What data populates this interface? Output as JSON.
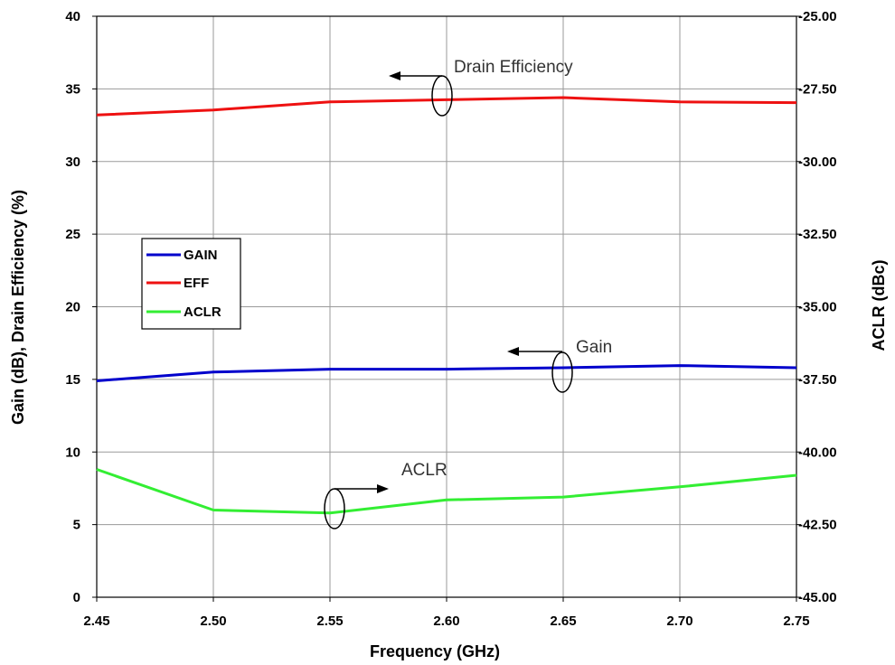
{
  "chart_data": {
    "type": "line",
    "title": "",
    "xlabel": "Frequency (GHz)",
    "ylabel_left": "Gain (dB), Drain Efficiency (%)",
    "ylabel_right": "ACLR (dBc)",
    "x": [
      2.45,
      2.5,
      2.55,
      2.6,
      2.65,
      2.7,
      2.75
    ],
    "x_ticks": [
      "2.45",
      "2.50",
      "2.55",
      "2.60",
      "2.65",
      "2.70",
      "2.75"
    ],
    "xlim": [
      2.45,
      2.75
    ],
    "ylim_left": [
      0,
      40
    ],
    "ylim_right": [
      -45,
      -25
    ],
    "y_left_ticks": [
      "0",
      "5",
      "10",
      "15",
      "20",
      "25",
      "30",
      "35",
      "40"
    ],
    "y_right_ticks": [
      "-45.00",
      "-42.50",
      "-40.00",
      "-37.50",
      "-35.00",
      "-32.50",
      "-30.00",
      "-27.50",
      "-25.00"
    ],
    "grid": true,
    "legend_position": "left-middle",
    "series": [
      {
        "name": "GAIN",
        "axis": "left",
        "color": "#0000cc",
        "values": [
          14.9,
          15.5,
          15.7,
          15.7,
          15.8,
          15.95,
          15.8
        ]
      },
      {
        "name": "EFF",
        "axis": "left",
        "color": "#ee1111",
        "values": [
          33.2,
          33.55,
          34.1,
          34.25,
          34.4,
          34.1,
          34.05
        ]
      },
      {
        "name": "ACLR",
        "axis": "right",
        "color": "#33ee33",
        "values": [
          -40.6,
          -42.0,
          -42.1,
          -41.65,
          -41.55,
          -41.2,
          -40.8
        ]
      }
    ],
    "annotations": [
      "Drain Efficiency",
      "Gain",
      "ACLR"
    ]
  }
}
